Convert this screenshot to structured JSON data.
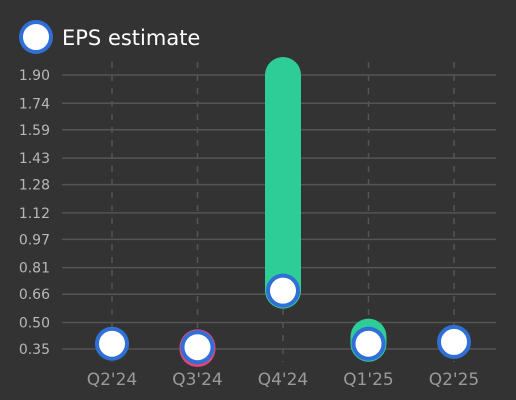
{
  "chart_data": {
    "type": "line",
    "legend": {
      "label": "EPS estimate",
      "placement": "top-left"
    },
    "categories": [
      "Q2'24",
      "Q3'24",
      "Q4'24",
      "Q1'25",
      "Q2'25"
    ],
    "y_ticks": [
      "0.35",
      "0.50",
      "0.66",
      "0.81",
      "0.97",
      "1.12",
      "1.28",
      "1.43",
      "1.59",
      "1.74",
      "1.90"
    ],
    "ylim": [
      0.35,
      1.9
    ],
    "series": [
      {
        "name": "EPS estimate",
        "values": [
          0.38,
          0.36,
          0.68,
          0.38,
          0.39
        ]
      }
    ],
    "actual_values": [
      0.38,
      0.35,
      1.9,
      0.42,
      0.39
    ],
    "grid": true,
    "colors": {
      "background": "#333333",
      "grid": "#555555",
      "beat": "#2ecc96",
      "miss": "#e0457b",
      "estimate_fill": "#ffffff",
      "estimate_stroke": "#2f6fd6"
    }
  }
}
